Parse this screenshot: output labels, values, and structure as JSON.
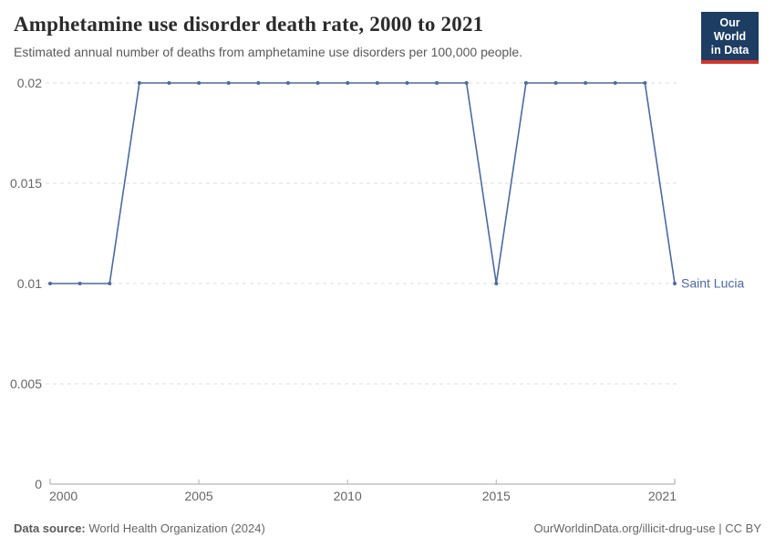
{
  "header": {
    "title": "Amphetamine use disorder death rate, 2000 to 2021",
    "subtitle": "Estimated annual number of deaths from amphetamine use disorders per 100,000 people."
  },
  "logo": {
    "line1": "Our World",
    "line2": "in Data",
    "bg_color": "#1d3d63",
    "stripe_color": "#d0352b"
  },
  "footer": {
    "source_label": "Data source:",
    "source_value": "World Health Organization (2024)",
    "credit": "OurWorldinData.org/illicit-drug-use | CC BY"
  },
  "chart_data": {
    "type": "line",
    "title": "Amphetamine use disorder death rate, 2000 to 2021",
    "entity_label": "Saint Lucia",
    "x": [
      2000,
      2001,
      2002,
      2003,
      2004,
      2005,
      2006,
      2007,
      2008,
      2009,
      2010,
      2011,
      2012,
      2013,
      2014,
      2015,
      2016,
      2017,
      2018,
      2019,
      2020,
      2021
    ],
    "values": [
      0.01,
      0.01,
      0.01,
      0.02,
      0.02,
      0.02,
      0.02,
      0.02,
      0.02,
      0.02,
      0.02,
      0.02,
      0.02,
      0.02,
      0.02,
      0.01,
      0.02,
      0.02,
      0.02,
      0.02,
      0.02,
      0.01
    ],
    "xlim": [
      2000,
      2021
    ],
    "ylim": [
      0,
      0.02
    ],
    "xticks": [
      2000,
      2005,
      2010,
      2015,
      2021
    ],
    "yticks": [
      0,
      0.005,
      0.01,
      0.015,
      0.02
    ],
    "ytick_labels": [
      "0",
      "0.005",
      "0.01",
      "0.015",
      "0.02"
    ],
    "grid": "horizontal-dashed",
    "legend_position": "end-of-line-label",
    "line_color": "#4c6a9c",
    "grid_color": "#dcdcdc",
    "axis_color": "#a3a3a3",
    "tick_text_color": "#666666"
  }
}
